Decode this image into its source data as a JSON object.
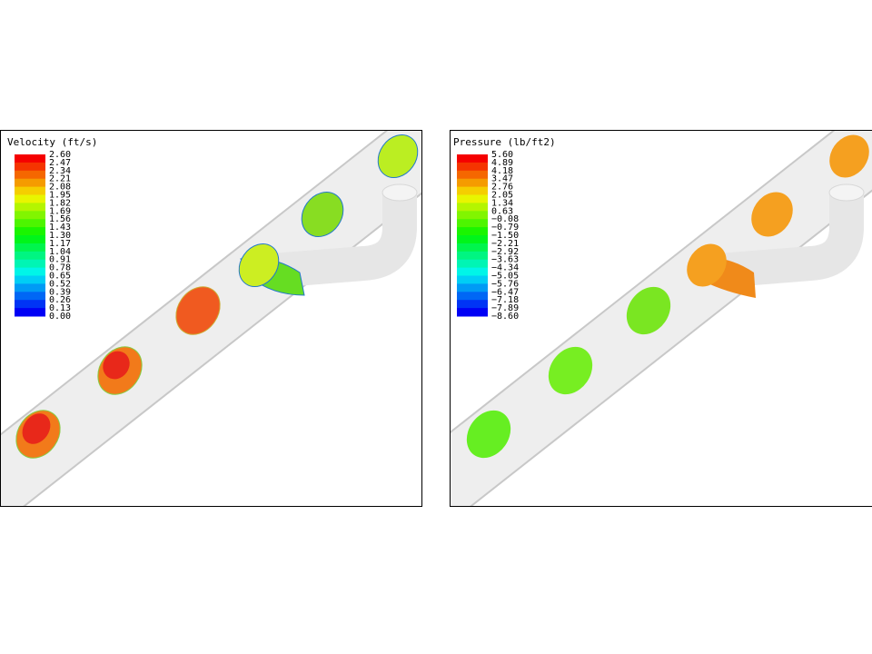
{
  "panels": [
    {
      "title": "Velocity (ft/s)",
      "legend": [
        "2.60",
        "2.47",
        "2.34",
        "2.21",
        "2.08",
        "1.95",
        "1.82",
        "1.69",
        "1.56",
        "1.43",
        "1.30",
        "1.17",
        "1.04",
        "0.91",
        "0.78",
        "0.65",
        "0.52",
        "0.39",
        "0.26",
        "0.13",
        "0.00"
      ]
    },
    {
      "title": "Pressure (lb/ft2)",
      "legend": [
        "5.60",
        "4.89",
        "4.18",
        "3.47",
        "2.76",
        "2.05",
        "1.34",
        "0.63",
        "−0.08",
        "−0.79",
        "−1.50",
        "−2.21",
        "−2.92",
        "−3.63",
        "−4.34",
        "−5.05",
        "−5.76",
        "−6.47",
        "−7.18",
        "−7.89",
        "−8.60"
      ]
    }
  ]
}
